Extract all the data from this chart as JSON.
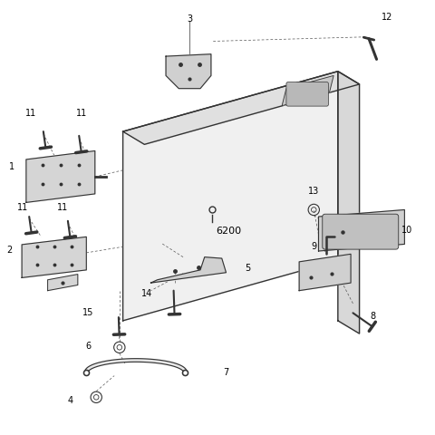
{
  "bg_color": "#ffffff",
  "fig_size": [
    4.8,
    4.8
  ],
  "dpi": 100,
  "part_color": "#333333",
  "line_color": "#555555",
  "fill_light": "#f0f0f0",
  "fill_mid": "#e0e0e0",
  "fill_dark": "#d8d8d8",
  "fill_part": "#d0d0d0",
  "fill_hinge": "#d5d5d5"
}
